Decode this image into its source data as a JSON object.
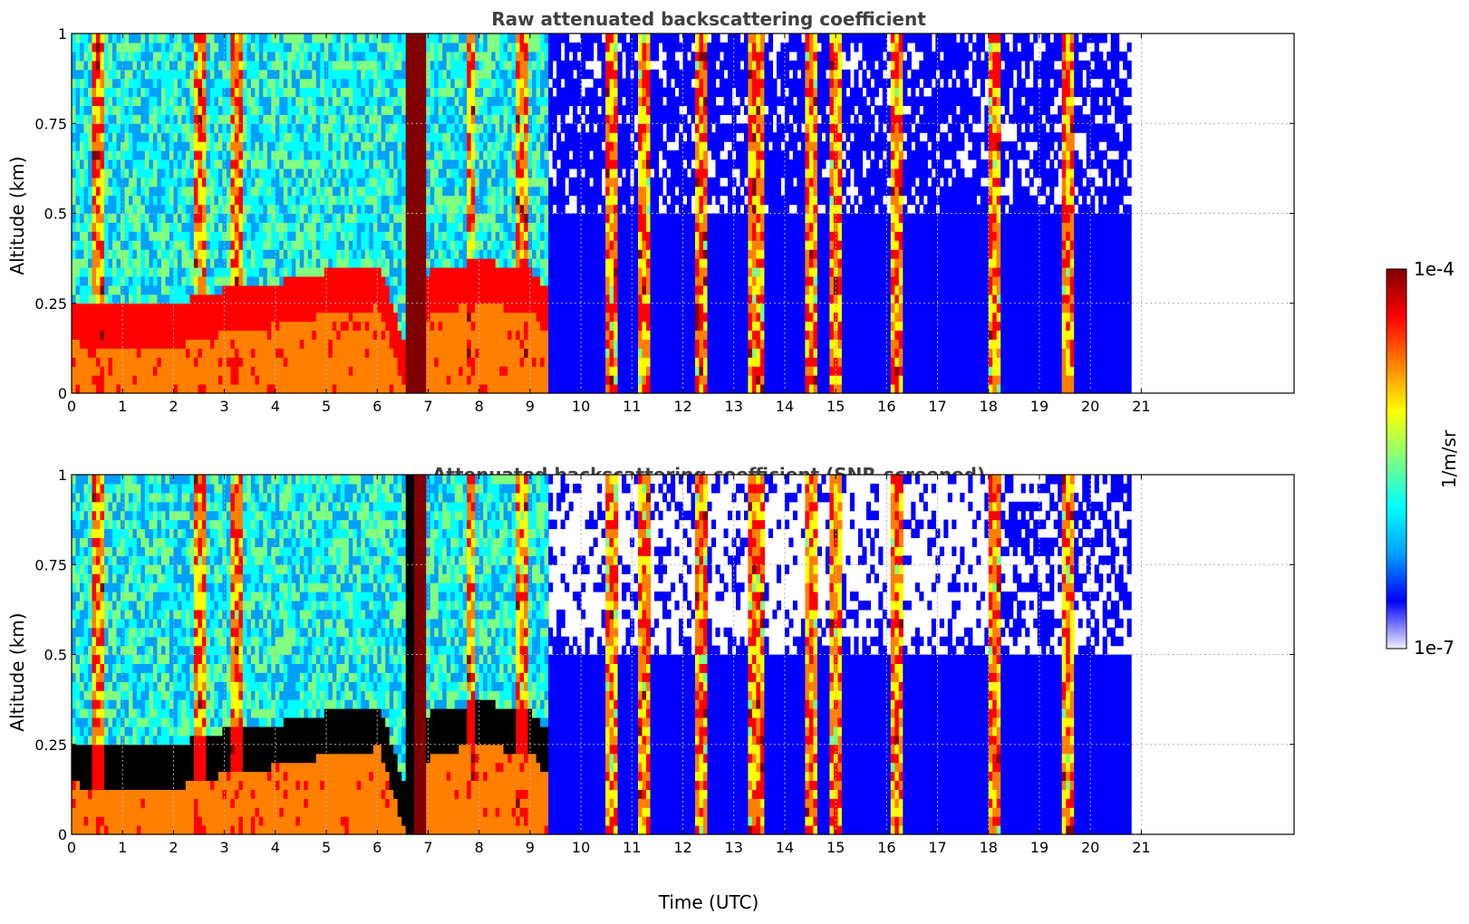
{
  "chart_data": [
    {
      "type": "heatmap",
      "title": "Raw attenuated backscattering coefficient",
      "xlabel": "",
      "ylabel": "Altitude (km)",
      "xlim": [
        0,
        24
      ],
      "ylim": [
        0,
        1
      ],
      "xticks": [
        "0",
        "1",
        "2",
        "3",
        "4",
        "5",
        "6",
        "7",
        "8",
        "9",
        "10",
        "11",
        "12",
        "13",
        "14",
        "15",
        "16",
        "17",
        "18",
        "19",
        "20",
        "21"
      ],
      "yticks": [
        "0",
        "0.25",
        "0.5",
        "0.75",
        "1"
      ],
      "grid": true,
      "data_end_time": 20.8,
      "boundary_layer_top": {
        "time": [
          0,
          1,
          2,
          3,
          4,
          5,
          6,
          6.6,
          7,
          8,
          9,
          9.3
        ],
        "altitude": [
          0.22,
          0.2,
          0.21,
          0.25,
          0.27,
          0.3,
          0.32,
          0.05,
          0.3,
          0.33,
          0.3,
          0.25
        ]
      },
      "cloud_columns_time": [
        0.5,
        2.5,
        3.2,
        6.8,
        7.8,
        8.8,
        10.6,
        11.2,
        12.3,
        13.4,
        14.5,
        15.0,
        16.2,
        18.1,
        19.5
      ]
    },
    {
      "type": "heatmap",
      "title": "Attenuated backscattering coefficient (SNR-screened)",
      "xlabel": "Time (UTC)",
      "ylabel": "Altitude (km)",
      "xlim": [
        0,
        24
      ],
      "ylim": [
        0,
        1
      ],
      "xticks": [
        "0",
        "1",
        "2",
        "3",
        "4",
        "5",
        "6",
        "7",
        "8",
        "9",
        "10",
        "11",
        "12",
        "13",
        "14",
        "15",
        "16",
        "17",
        "18",
        "19",
        "20",
        "21"
      ],
      "yticks": [
        "0",
        "0.25",
        "0.5",
        "0.75",
        "1"
      ],
      "grid": true,
      "data_end_time": 20.8,
      "screened": true
    }
  ],
  "colorbar": {
    "label": "1/m/sr",
    "max_label": "1e-4",
    "min_label": "1e-7",
    "scale": "log",
    "colormap": [
      "#f0f0ff",
      "#0000ff",
      "#00a0ff",
      "#00ffff",
      "#80ff80",
      "#ffff00",
      "#ff8000",
      "#ff0000",
      "#800000"
    ]
  }
}
